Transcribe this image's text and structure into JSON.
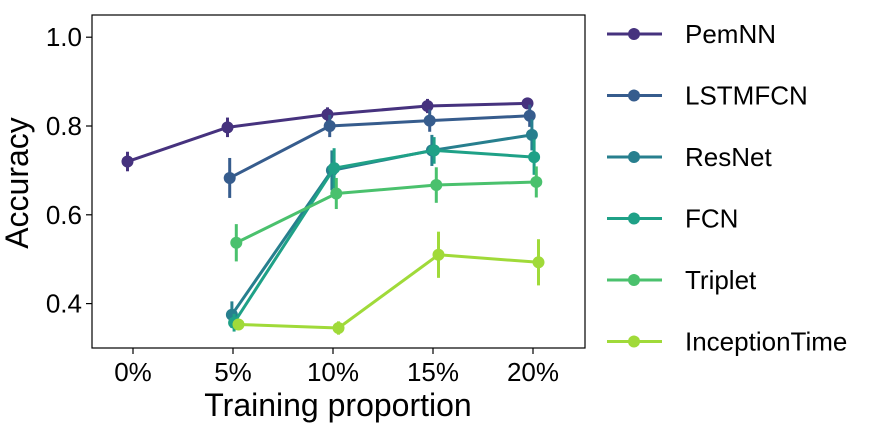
{
  "chart_data": {
    "type": "line",
    "xlabel": "Training proportion",
    "ylabel": "Accuracy",
    "categories": [
      "0%",
      "5%",
      "10%",
      "15%",
      "20%"
    ],
    "yticks": [
      "0.4",
      "0.6",
      "0.8",
      "1.0"
    ],
    "ytick_values": [
      0.4,
      0.6,
      0.8,
      1.0
    ],
    "ylim": [
      0.3,
      1.05
    ],
    "grid": false,
    "legend_position": "right",
    "series": [
      {
        "name": "PemNN",
        "color": "#46327e",
        "values": [
          0.72,
          0.797,
          0.826,
          0.845,
          0.851
        ],
        "errors": [
          0.022,
          0.022,
          0.016,
          0.016,
          0.013
        ]
      },
      {
        "name": "LSTMFCN",
        "color": "#365c8d",
        "values": [
          null,
          0.683,
          0.8,
          0.812,
          0.823
        ],
        "errors": [
          null,
          0.045,
          0.025,
          0.025,
          0.025
        ]
      },
      {
        "name": "ResNet",
        "color": "#277f8e",
        "values": [
          null,
          0.375,
          0.7,
          0.745,
          0.78
        ],
        "errors": [
          null,
          0.03,
          0.045,
          0.035,
          0.035
        ]
      },
      {
        "name": "FCN",
        "color": "#1fa187",
        "values": [
          null,
          0.357,
          0.705,
          0.745,
          0.73
        ],
        "errors": [
          null,
          0.02,
          0.045,
          0.03,
          0.04
        ]
      },
      {
        "name": "Triplet",
        "color": "#4ac16d",
        "values": [
          null,
          0.537,
          0.648,
          0.667,
          0.674
        ],
        "errors": [
          null,
          0.042,
          0.035,
          0.04,
          0.035
        ]
      },
      {
        "name": "InceptionTime",
        "color": "#a0da39",
        "values": [
          null,
          0.353,
          0.345,
          0.51,
          0.493
        ],
        "errors": [
          null,
          0.012,
          0.015,
          0.052,
          0.052
        ]
      }
    ]
  }
}
